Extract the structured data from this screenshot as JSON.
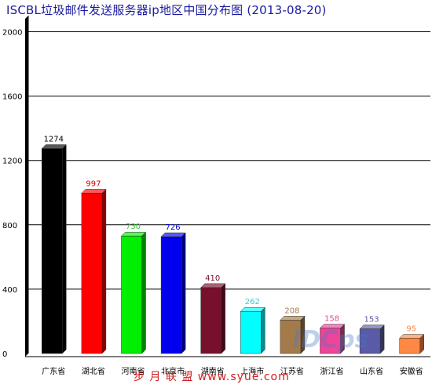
{
  "chart_data": {
    "type": "bar",
    "title": "ISCBL垃圾邮件发送服务器ip地区中国分布图 (2013-08-20)",
    "categories": [
      "广东省",
      "湖北省",
      "河南省",
      "北京市",
      "湖南省",
      "上海市",
      "江苏省",
      "浙江省",
      "山东省",
      "安徽省"
    ],
    "values": [
      1274,
      997,
      730,
      726,
      410,
      262,
      208,
      158,
      153,
      95
    ],
    "bar_colors": [
      "#000000",
      "#ff0000",
      "#00ee00",
      "#0000ee",
      "#77102a",
      "#00ffff",
      "#a57a4a",
      "#ee4499",
      "#5a5aa8",
      "#ff8844"
    ],
    "label_colors": [
      "#000000",
      "#cc0000",
      "#33cc33",
      "#0000cc",
      "#77102a",
      "#33cccc",
      "#a57a4a",
      "#ee4499",
      "#5a5aa8",
      "#ff8844"
    ],
    "yticks": [
      0,
      400,
      800,
      1200,
      1600,
      2000
    ],
    "ylim": [
      0,
      2100
    ],
    "grid": true,
    "xlabel": "",
    "ylabel": ""
  },
  "watermark": {
    "text": "步 月 联 盟  www.syue.com",
    "logo": "IDCps"
  }
}
